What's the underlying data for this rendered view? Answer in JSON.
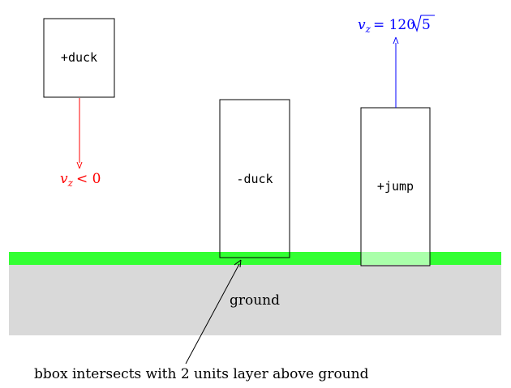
{
  "diagram": {
    "boxes": {
      "duck_plus": "+duck",
      "duck_minus": "-duck",
      "jump_plus": "+jump"
    },
    "labels": {
      "ground": "ground",
      "note": "bbox intersects with 2 units layer above ground"
    },
    "velocity": {
      "down": {
        "symbol": "v",
        "subscript": "z",
        "relation": "< 0",
        "color": "#ff0000"
      },
      "up": {
        "symbol": "v",
        "subscript": "z",
        "relation": "= 120",
        "radicand": "5",
        "color": "#0000ff"
      }
    },
    "colors": {
      "layer": "#33ff33",
      "layer_overlap": "#aaffaa",
      "ground": "#d9d9d9",
      "stroke": "#000000"
    }
  }
}
